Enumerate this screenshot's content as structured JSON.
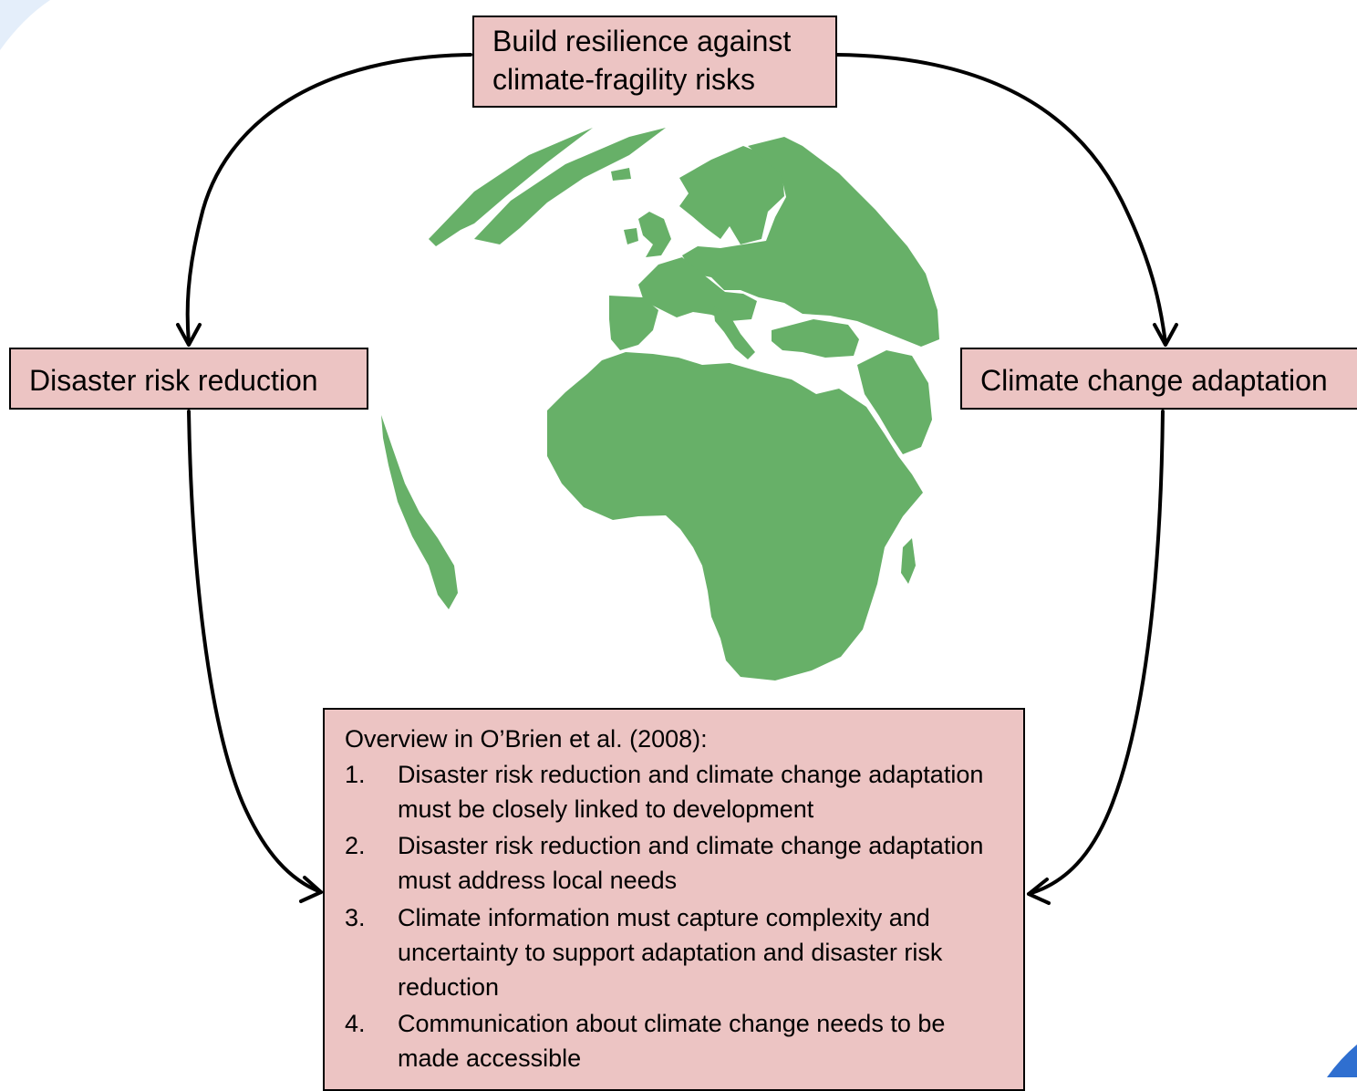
{
  "colors": {
    "box_fill": "#ecc4c3",
    "globe_land": "#67b068",
    "arrow_stroke": "#000000",
    "corner_accent": "#2f6fd0"
  },
  "icons": [
    "globe-icon",
    "arrow-icon"
  ],
  "nodes": {
    "top": "Build resilience against climate-fragility risks",
    "left": "Disaster risk reduction",
    "right": "Climate change adaptation"
  },
  "overview": {
    "heading": "Overview in O’Brien et al. (2008):",
    "items": [
      {
        "num": "1.",
        "text": "Disaster risk reduction and climate change adaptation must be closely linked to development"
      },
      {
        "num": "2.",
        "text": "Disaster risk reduction and climate change adaptation must address local needs"
      },
      {
        "num": "3.",
        "text": "Climate information must capture complexity and uncertainty to support adaptation and disaster risk reduction"
      },
      {
        "num": "4.",
        "text": "Communication about climate change needs to be made accessible"
      }
    ]
  }
}
